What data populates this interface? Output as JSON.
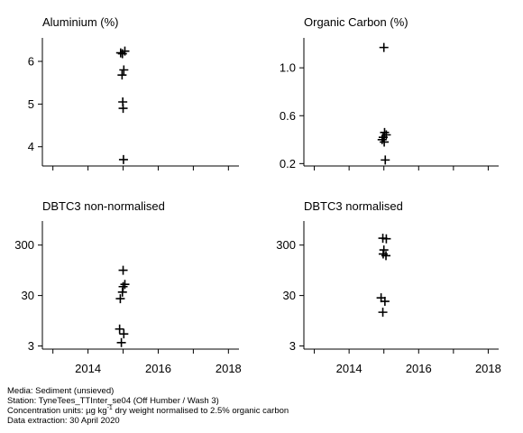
{
  "chart_data": [
    {
      "type": "scatter",
      "title": "Aluminium (%)",
      "xlim": [
        2012.7,
        2018.3
      ],
      "xticks": [
        2014,
        2016,
        2018
      ],
      "yscale": "linear",
      "ylim": [
        3.55,
        6.55
      ],
      "yticks": [
        4,
        5,
        6
      ],
      "ytick_labels": [
        "4",
        "5",
        "6"
      ],
      "points": [
        {
          "x": 2014.93,
          "y": 6.2
        },
        {
          "x": 2015.05,
          "y": 6.24
        },
        {
          "x": 2014.98,
          "y": 6.18
        },
        {
          "x": 2015.02,
          "y": 5.8
        },
        {
          "x": 2014.97,
          "y": 5.68
        },
        {
          "x": 2014.99,
          "y": 5.05
        },
        {
          "x": 2015.0,
          "y": 4.9
        },
        {
          "x": 2015.01,
          "y": 3.7
        }
      ]
    },
    {
      "type": "scatter",
      "title": "Organic Carbon (%)",
      "xlim": [
        2012.7,
        2018.3
      ],
      "xticks": [
        2014,
        2016,
        2018
      ],
      "yscale": "linear",
      "ylim": [
        0.18,
        1.25
      ],
      "yticks": [
        0.2,
        0.6,
        1.0
      ],
      "ytick_labels": [
        "0.2",
        "0.6",
        "1.0"
      ],
      "points": [
        {
          "x": 2015.0,
          "y": 1.17
        },
        {
          "x": 2015.02,
          "y": 0.46
        },
        {
          "x": 2015.07,
          "y": 0.44
        },
        {
          "x": 2014.98,
          "y": 0.42
        },
        {
          "x": 2014.95,
          "y": 0.4
        },
        {
          "x": 2015.01,
          "y": 0.38
        },
        {
          "x": 2015.04,
          "y": 0.23
        }
      ]
    },
    {
      "type": "scatter",
      "title": "DBTC3 non-normalised",
      "xlim": [
        2012.7,
        2018.3
      ],
      "xticks": [
        2014,
        2016,
        2018
      ],
      "yscale": "log",
      "ylim": [
        2.6,
        900
      ],
      "yticks": [
        3,
        30,
        300
      ],
      "ytick_labels": [
        "3",
        "30",
        "300"
      ],
      "points": [
        {
          "x": 2015.0,
          "y": 95
        },
        {
          "x": 2015.05,
          "y": 50
        },
        {
          "x": 2015.0,
          "y": 45
        },
        {
          "x": 2014.98,
          "y": 35
        },
        {
          "x": 2014.92,
          "y": 26
        },
        {
          "x": 2014.9,
          "y": 6.5
        },
        {
          "x": 2015.02,
          "y": 5.2
        },
        {
          "x": 2014.95,
          "y": 3.5
        }
      ]
    },
    {
      "type": "scatter",
      "title": "DBTC3 normalised",
      "xlim": [
        2012.7,
        2018.3
      ],
      "xticks": [
        2014,
        2016,
        2018
      ],
      "yscale": "log",
      "ylim": [
        2.6,
        900
      ],
      "yticks": [
        3,
        30,
        300
      ],
      "ytick_labels": [
        "3",
        "30",
        "300"
      ],
      "points": [
        {
          "x": 2014.97,
          "y": 410
        },
        {
          "x": 2015.07,
          "y": 400
        },
        {
          "x": 2015.0,
          "y": 240
        },
        {
          "x": 2014.98,
          "y": 200
        },
        {
          "x": 2015.06,
          "y": 185
        },
        {
          "x": 2014.92,
          "y": 27
        },
        {
          "x": 2015.03,
          "y": 23
        },
        {
          "x": 2014.97,
          "y": 14
        }
      ]
    }
  ],
  "footer": {
    "media": "Media: Sediment (unsieved)",
    "station": "Station: TyneTees_TTInter_se04 (Off Humber / Wash 3)",
    "units_prefix": "Concentration units:  µg kg",
    "units_sup": "-1",
    "units_suffix": " dry weight normalised to 2.5% organic carbon",
    "extraction": "Data extraction: 30 April 2020"
  }
}
